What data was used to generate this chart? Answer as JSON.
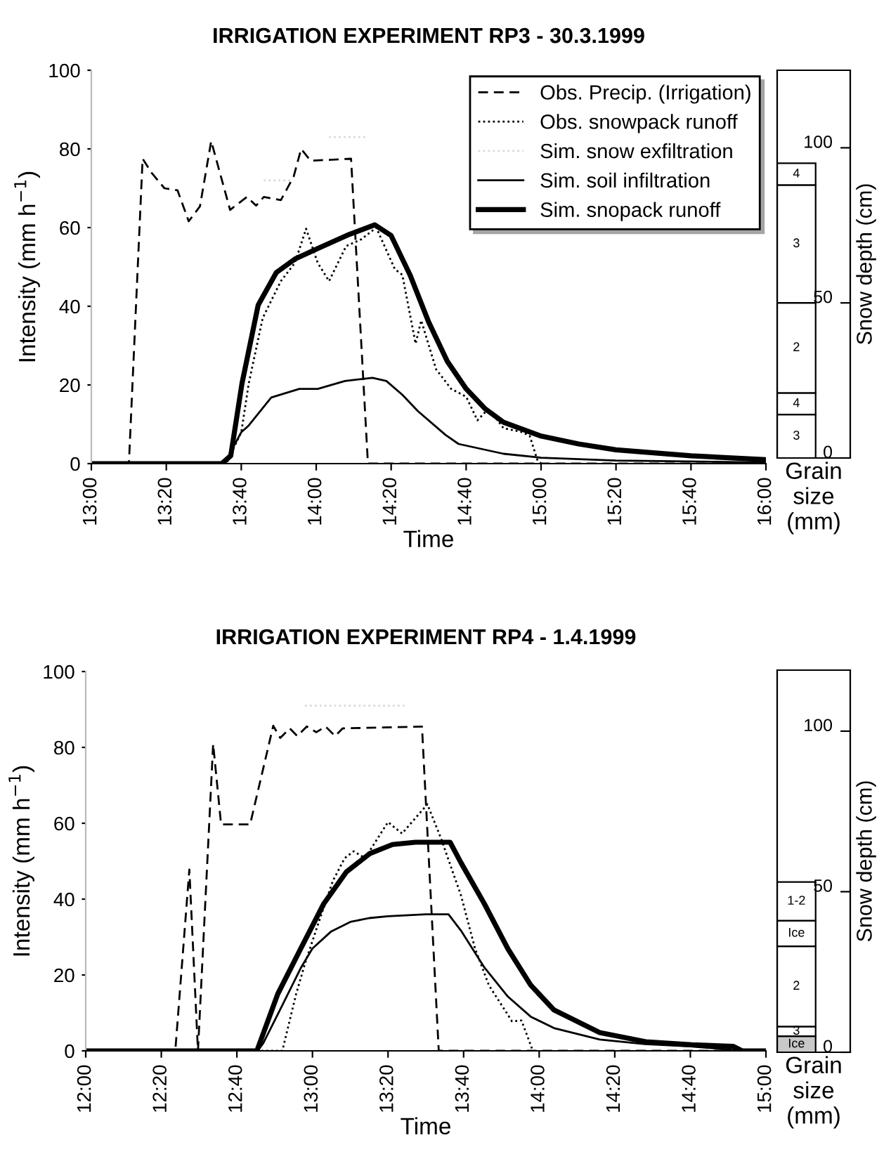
{
  "chart_data": [
    {
      "type": "line",
      "title": "IRRIGATION EXPERIMENT RP3 - 30.3.1999",
      "xlabel": "Time",
      "ylabel": "Intensity (mm h$^{−1}$)",
      "xlim": [
        13.0,
        16.0
      ],
      "xticks": [
        {
          "value": 13.0,
          "label": "13:00"
        },
        {
          "value": 13.3333,
          "label": "13:20"
        },
        {
          "value": 13.6667,
          "label": "13:40"
        },
        {
          "value": 14.0,
          "label": "14:00"
        },
        {
          "value": 14.3333,
          "label": "14:20"
        },
        {
          "value": 14.6667,
          "label": "14:40"
        },
        {
          "value": 15.0,
          "label": "15:00"
        },
        {
          "value": 15.3333,
          "label": "15:20"
        },
        {
          "value": 15.6667,
          "label": "15:40"
        },
        {
          "value": 16.0,
          "label": "16:00"
        }
      ],
      "ylim": [
        0,
        100
      ],
      "yticks": [
        0,
        20,
        40,
        60,
        80,
        100
      ],
      "grid": false,
      "legend": "top right",
      "marker": "none",
      "series": [
        {
          "name": "Obs. Precip. (Irrigation)",
          "color": "#000000",
          "line_style": "dashed",
          "x": [
            13.0,
            13.167,
            13.228,
            13.267,
            13.325,
            13.383,
            13.433,
            13.483,
            13.533,
            13.617,
            13.692,
            13.733,
            13.767,
            13.843,
            13.9,
            13.933,
            13.975,
            14.155,
            14.23,
            16.0
          ],
          "values": [
            0,
            0,
            77.5,
            74,
            70,
            69.5,
            61.6,
            65.4,
            82,
            64.5,
            67.8,
            65.6,
            67.8,
            67,
            73,
            80,
            77,
            77.5,
            0,
            0
          ]
        },
        {
          "name": "Obs. snowpack runoff",
          "color": "#000000",
          "line_style": "dotted",
          "x": [
            13.0,
            13.6,
            13.667,
            13.7,
            13.762,
            13.843,
            13.905,
            13.955,
            14.007,
            14.057,
            14.133,
            14.2,
            14.267,
            14.35,
            14.383,
            14.442,
            14.467,
            14.533,
            14.6,
            14.667,
            14.717,
            14.767,
            14.833,
            14.917,
            14.95,
            14.983,
            15.0
          ],
          "values": [
            0,
            0,
            8,
            20.4,
            37,
            46.4,
            51,
            59.7,
            51,
            46.4,
            55.3,
            57,
            60,
            49.4,
            48,
            30.5,
            36.4,
            24,
            19,
            17,
            11,
            14,
            9,
            8,
            7,
            1,
            0
          ]
        },
        {
          "name": "Sim. snow exfiltration",
          "color": "#d9d9d9",
          "line_style": "dotted",
          "x": [
            13.767,
            13.893,
            13.94,
            14.057,
            14.23
          ],
          "values": [
            72,
            72,
            null,
            83,
            83
          ]
        },
        {
          "name": "Sim. soil infiltration",
          "color": "#000000",
          "line_style": "solid",
          "x": [
            13.0,
            13.592,
            13.667,
            13.7,
            13.8,
            13.925,
            14.007,
            14.128,
            14.25,
            14.312,
            14.383,
            14.453,
            14.575,
            14.633,
            14.833,
            15.0,
            15.333,
            16.0
          ],
          "values": [
            0,
            0,
            8,
            9.7,
            16.8,
            19,
            19,
            21,
            21.8,
            21,
            17.5,
            13.3,
            7.3,
            5,
            2.5,
            1.5,
            0.8,
            0.3
          ]
        },
        {
          "name": "Sim. snopack runoff",
          "color": "#000000",
          "line_style": "solid",
          "x": [
            13.0,
            13.58,
            13.62,
            13.67,
            13.742,
            13.823,
            13.905,
            14.007,
            14.148,
            14.26,
            14.333,
            14.417,
            14.5,
            14.583,
            14.667,
            14.75,
            14.833,
            15.0,
            15.167,
            15.333,
            15.667,
            16.0
          ],
          "values": [
            0,
            0,
            2,
            20.4,
            40.3,
            48.6,
            52,
            54.7,
            58.3,
            60.7,
            58,
            48,
            36,
            26,
            19,
            14,
            10.5,
            7,
            5,
            3.5,
            2,
            1
          ]
        }
      ]
    },
    {
      "type": "bar",
      "stacked": true,
      "categories": [
        null
      ],
      "xlabel": "Grain\nsize\n(mm)",
      "ylabel": "Snow depth (cm)",
      "ylim": [
        0,
        125
      ],
      "yticks": [
        0,
        50,
        100
      ],
      "tick_labels": "y",
      "grid": false,
      "series": [
        {
          "color": "#ffffff",
          "values": [
            14
          ]
        },
        {
          "color": "#ffffff",
          "values": [
            7
          ]
        },
        {
          "color": "#ffffff",
          "values": [
            29
          ]
        },
        {
          "color": "#ffffff",
          "values": [
            38
          ]
        },
        {
          "color": "#ffffff",
          "values": [
            7
          ]
        }
      ],
      "annotations": [
        "3",
        "4",
        "2",
        "3",
        "4"
      ]
    },
    {
      "type": "line",
      "title": "IRRIGATION EXPERIMENT RP4 - 1.4.1999",
      "xlabel": "Time",
      "ylabel": "Intensity (mm h$^{−1}$)",
      "xlim": [
        12.0,
        15.0
      ],
      "xticks": [
        {
          "value": 12.0,
          "label": "12:00"
        },
        {
          "value": 12.3333,
          "label": "12:20"
        },
        {
          "value": 12.6667,
          "label": "12:40"
        },
        {
          "value": 13.0,
          "label": "13:00"
        },
        {
          "value": 13.3333,
          "label": "13:20"
        },
        {
          "value": 13.6667,
          "label": "13:40"
        },
        {
          "value": 14.0,
          "label": "14:00"
        },
        {
          "value": 14.3333,
          "label": "14:20"
        },
        {
          "value": 14.6667,
          "label": "14:40"
        },
        {
          "value": 15.0,
          "label": "15:00"
        }
      ],
      "ylim": [
        0,
        100
      ],
      "yticks": [
        0,
        20,
        40,
        60,
        80,
        100
      ],
      "grid": false,
      "marker": "none",
      "series": [
        {
          "color": "#000000",
          "line_style": "dashed",
          "x": [
            12.0,
            12.395,
            12.457,
            12.495,
            12.562,
            12.597,
            12.725,
            12.827,
            12.858,
            12.9,
            12.933,
            12.975,
            13.017,
            13.058,
            13.1,
            13.133,
            13.483,
            13.557,
            15.0
          ],
          "values": [
            0,
            0,
            47.8,
            0,
            80.9,
            59.7,
            59.7,
            85.7,
            82.5,
            85,
            83,
            85.5,
            84,
            85.5,
            83,
            85,
            85.5,
            0,
            0
          ]
        },
        {
          "color": "#000000",
          "line_style": "dotted",
          "x": [
            12.0,
            12.867,
            12.928,
            12.967,
            13.028,
            13.09,
            13.142,
            13.182,
            13.232,
            13.333,
            13.395,
            13.507,
            13.567,
            13.655,
            13.717,
            13.778,
            13.88,
            13.922,
            13.972
          ],
          "values": [
            0,
            0,
            15,
            23,
            34,
            44.8,
            50.8,
            52.6,
            50.8,
            60.3,
            57.3,
            65,
            56,
            41,
            27,
            17.3,
            7.8,
            8,
            0
          ]
        },
        {
          "color": "#d9d9d9",
          "line_style": "dotted",
          "x": [
            12.967,
            13.417
          ],
          "values": [
            91,
            91
          ]
        },
        {
          "color": "#000000",
          "line_style": "solid",
          "x": [
            12.0,
            12.758,
            12.783,
            12.867,
            12.95,
            13.0,
            13.083,
            13.167,
            13.25,
            13.333,
            13.5,
            13.6,
            13.655,
            13.758,
            13.862,
            13.963,
            14.065,
            14.267,
            14.467,
            14.667,
            14.895,
            15.0
          ],
          "values": [
            0,
            0,
            2,
            12,
            22,
            27,
            31.5,
            34,
            35,
            35.5,
            36,
            36,
            31.7,
            22,
            14.3,
            9,
            6,
            3,
            1.8,
            1.2,
            0,
            0
          ]
        },
        {
          "color": "#000000",
          "line_style": "solid",
          "x": [
            12.0,
            12.755,
            12.847,
            12.948,
            13.05,
            13.15,
            13.253,
            13.353,
            13.455,
            13.607,
            13.655,
            13.758,
            13.862,
            13.963,
            14.065,
            14.267,
            14.47,
            14.673,
            14.855,
            14.895,
            15.0
          ],
          "values": [
            0,
            0,
            15,
            26.9,
            38.8,
            47.2,
            52,
            54.4,
            55,
            55,
            49.6,
            38.8,
            26.9,
            17.3,
            10.8,
            4.8,
            2.4,
            1.6,
            1.2,
            0,
            0
          ]
        }
      ]
    },
    {
      "type": "bar",
      "stacked": true,
      "categories": [
        null
      ],
      "xlabel": "Grain\nsize\n(mm)",
      "ylabel": "Snow depth (cm)",
      "ylim": [
        0,
        119
      ],
      "yticks": [
        0,
        50,
        100
      ],
      "tick_labels": "y",
      "grid": false,
      "series": [
        {
          "color": "#c8c8c8",
          "values": [
            5
          ]
        },
        {
          "color": "#ffffff",
          "values": [
            3
          ]
        },
        {
          "color": "#ffffff",
          "values": [
            25
          ]
        },
        {
          "color": "#ffffff",
          "values": [
            8
          ]
        },
        {
          "color": "#ffffff",
          "values": [
            12
          ]
        }
      ],
      "annotations": [
        "Ice",
        "3",
        "2",
        "Ice",
        "1-2"
      ]
    }
  ]
}
